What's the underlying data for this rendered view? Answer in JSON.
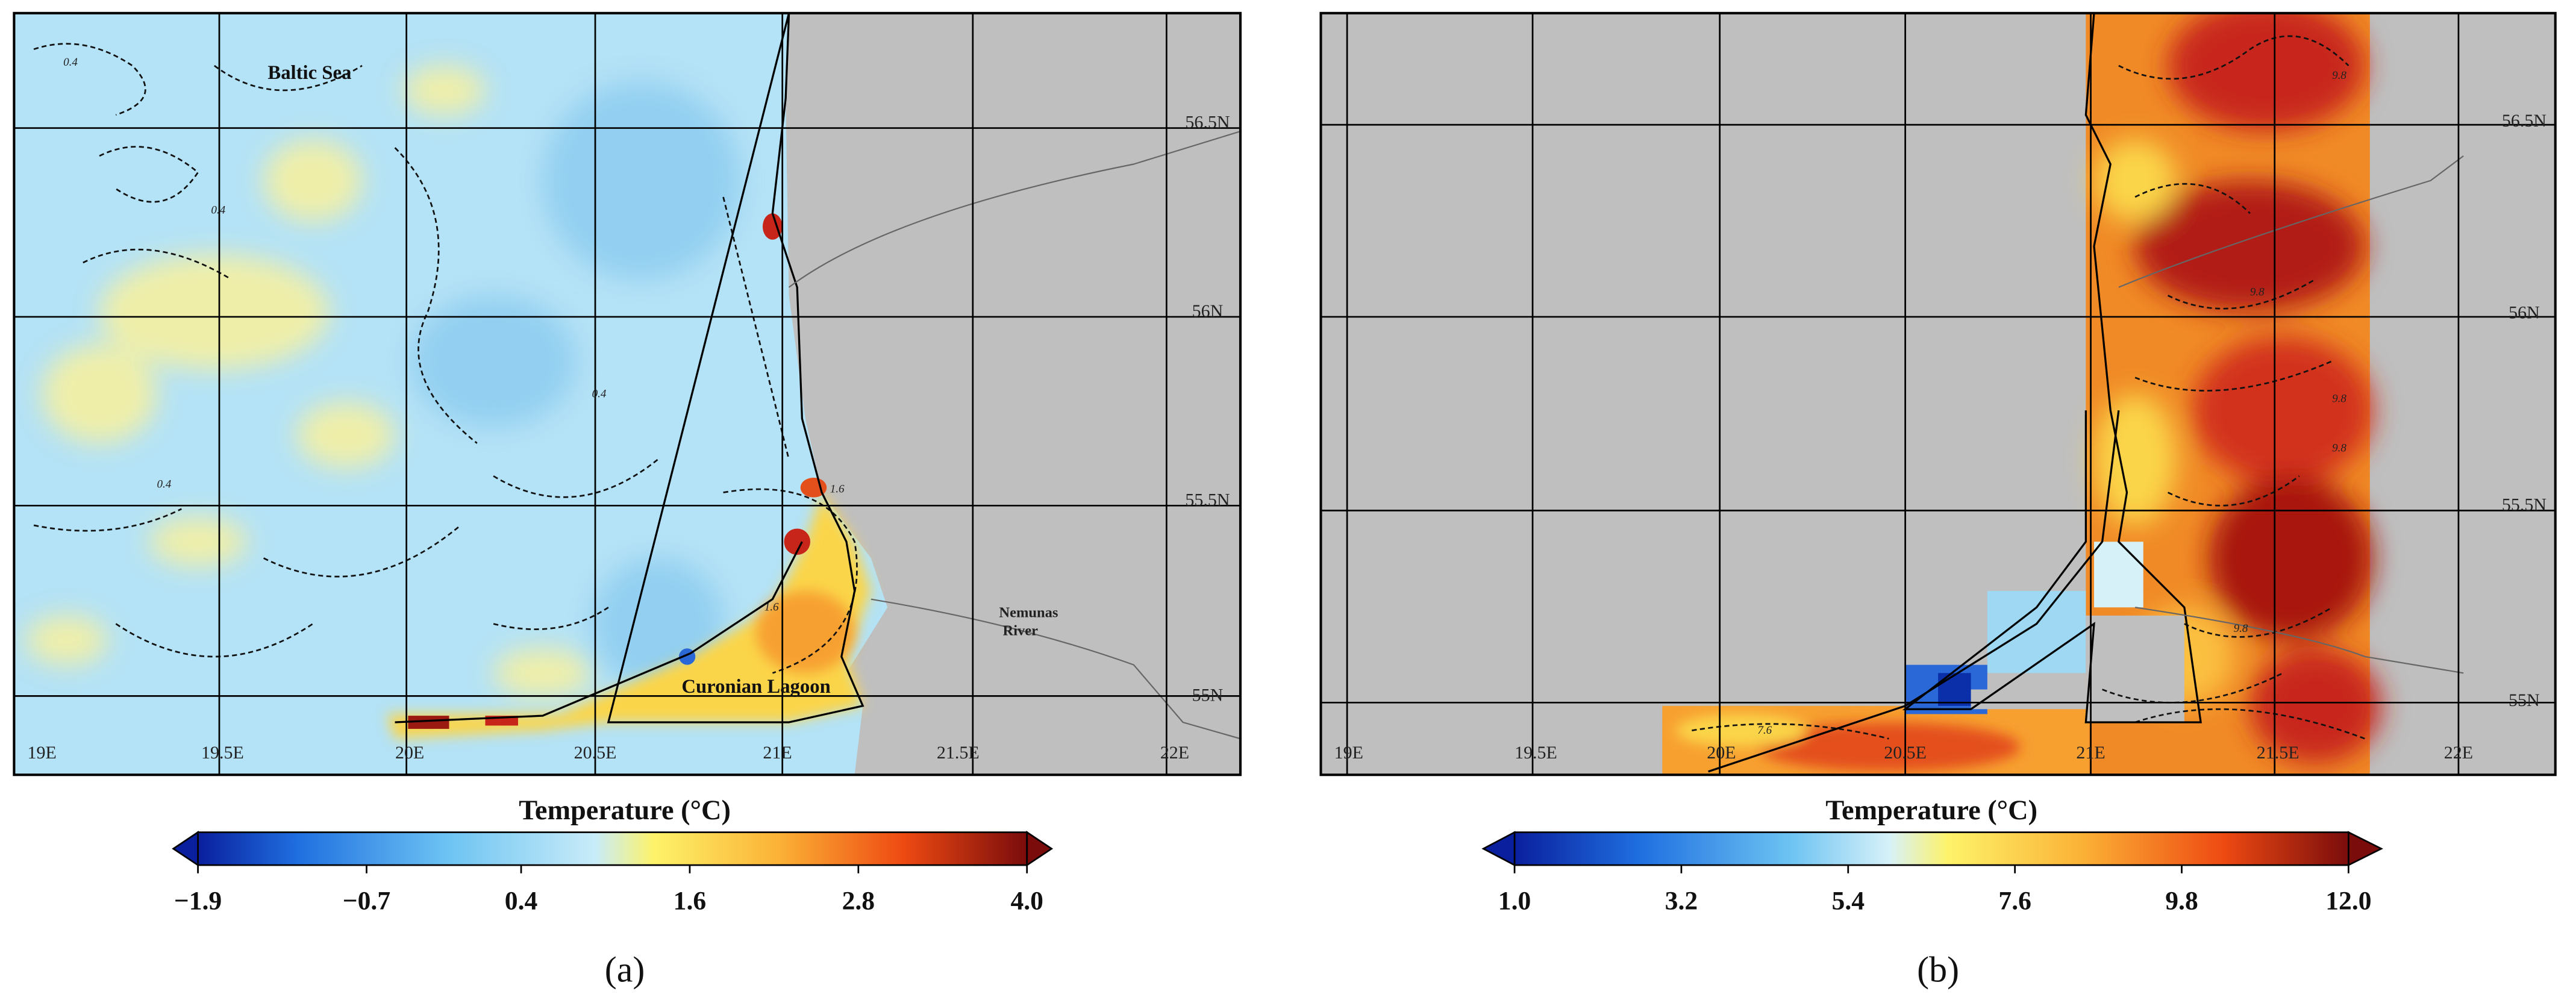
{
  "panels": [
    {
      "label": "(a)",
      "place_labels": [
        "Baltic Sea",
        "Curonian Lagoon",
        "Nemunas River"
      ],
      "lon_labels": [
        "19E",
        "19.5E",
        "20E",
        "20.5E",
        "21E",
        "21.5E",
        "22E"
      ],
      "lat_labels": [
        "56.5N",
        "56N",
        "55.5N",
        "55N"
      ],
      "contour_labels": [
        "0.4",
        "0.4",
        "0.4",
        "0.4",
        "1.6",
        "1.6"
      ],
      "colorbar": {
        "title": "Temperature (°C)",
        "lim": [
          -1.9,
          4.0
        ],
        "ticks": [
          {
            "value": -1.9,
            "label": "−1.9"
          },
          {
            "value": -0.7,
            "label": "−0.7"
          },
          0.4,
          1.6,
          2.8,
          {
            "value": 4.0,
            "label": "4.0"
          }
        ]
      }
    },
    {
      "label": "(b)",
      "place_labels": [],
      "lon_labels": [
        "19E",
        "19.5E",
        "20E",
        "20.5E",
        "21E",
        "21.5E",
        "22E"
      ],
      "lat_labels": [
        "56.5N",
        "56N",
        "55.5N",
        "55N"
      ],
      "contour_labels": [
        "9.8",
        "9.8",
        "9.8",
        "9.8",
        "7.6",
        "9.8"
      ],
      "colorbar": {
        "title": "Temperature (°C)",
        "lim": [
          1.0,
          12.0
        ],
        "ticks": [
          {
            "value": 1.0,
            "label": "1.0"
          },
          3.2,
          5.4,
          7.6,
          9.8,
          {
            "value": 12.0,
            "label": "12.0"
          }
        ]
      }
    }
  ]
}
